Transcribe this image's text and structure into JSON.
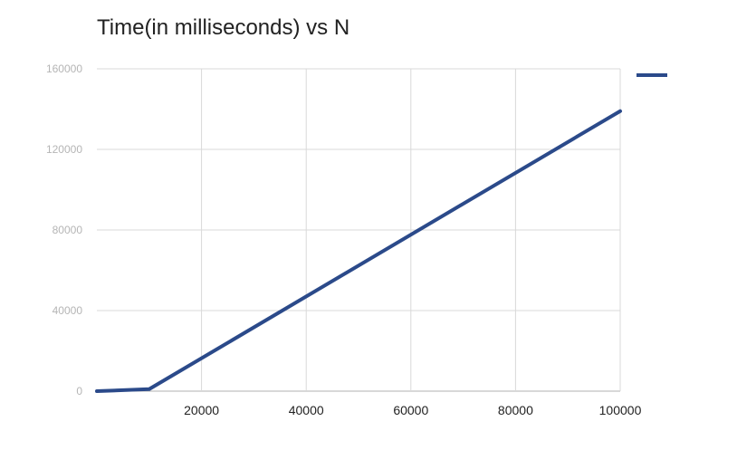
{
  "chart_data": {
    "type": "line",
    "title": "Time(in milliseconds) vs N",
    "xlabel": "",
    "ylabel": "",
    "xlim": [
      0,
      100000
    ],
    "ylim": [
      0,
      160000
    ],
    "x_ticks": [
      20000,
      40000,
      60000,
      80000,
      100000
    ],
    "x_tick_labels": [
      "20000",
      "40000",
      "60000",
      "80000",
      "100000"
    ],
    "y_ticks": [
      0,
      40000,
      80000,
      120000,
      160000
    ],
    "y_tick_labels": [
      "0",
      "40000",
      "80000",
      "120000",
      "160000"
    ],
    "grid": true,
    "legend_position": "top-right",
    "series": [
      {
        "color": "#2b4a8a",
        "x": [
          0,
          10000,
          100000
        ],
        "y": [
          0,
          1000,
          139000
        ]
      }
    ]
  }
}
